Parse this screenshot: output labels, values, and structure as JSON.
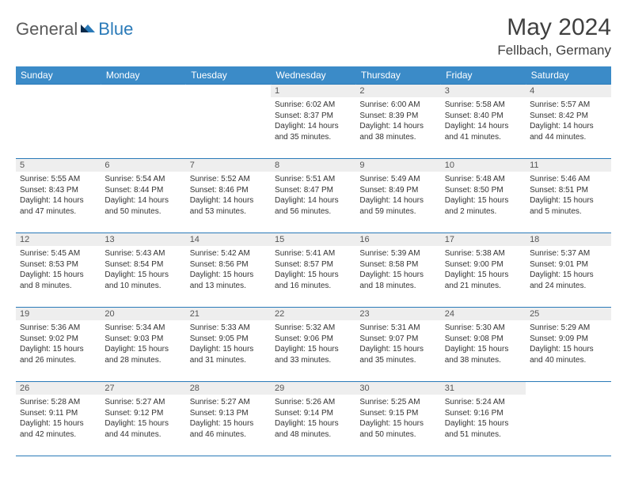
{
  "logo": {
    "text1": "General",
    "text2": "Blue"
  },
  "title": "May 2024",
  "location": "Fellbach, Germany",
  "colors": {
    "header_bg": "#3b8bc8",
    "header_fg": "#ffffff",
    "rule": "#2a7ab8",
    "daynum_bg": "#eeeeee",
    "accent": "#2a7ab8"
  },
  "weekdays": [
    "Sunday",
    "Monday",
    "Tuesday",
    "Wednesday",
    "Thursday",
    "Friday",
    "Saturday"
  ],
  "weeks": [
    [
      null,
      null,
      null,
      {
        "n": "1",
        "sr": "Sunrise: 6:02 AM",
        "ss": "Sunset: 8:37 PM",
        "d1": "Daylight: 14 hours",
        "d2": "and 35 minutes."
      },
      {
        "n": "2",
        "sr": "Sunrise: 6:00 AM",
        "ss": "Sunset: 8:39 PM",
        "d1": "Daylight: 14 hours",
        "d2": "and 38 minutes."
      },
      {
        "n": "3",
        "sr": "Sunrise: 5:58 AM",
        "ss": "Sunset: 8:40 PM",
        "d1": "Daylight: 14 hours",
        "d2": "and 41 minutes."
      },
      {
        "n": "4",
        "sr": "Sunrise: 5:57 AM",
        "ss": "Sunset: 8:42 PM",
        "d1": "Daylight: 14 hours",
        "d2": "and 44 minutes."
      }
    ],
    [
      {
        "n": "5",
        "sr": "Sunrise: 5:55 AM",
        "ss": "Sunset: 8:43 PM",
        "d1": "Daylight: 14 hours",
        "d2": "and 47 minutes."
      },
      {
        "n": "6",
        "sr": "Sunrise: 5:54 AM",
        "ss": "Sunset: 8:44 PM",
        "d1": "Daylight: 14 hours",
        "d2": "and 50 minutes."
      },
      {
        "n": "7",
        "sr": "Sunrise: 5:52 AM",
        "ss": "Sunset: 8:46 PM",
        "d1": "Daylight: 14 hours",
        "d2": "and 53 minutes."
      },
      {
        "n": "8",
        "sr": "Sunrise: 5:51 AM",
        "ss": "Sunset: 8:47 PM",
        "d1": "Daylight: 14 hours",
        "d2": "and 56 minutes."
      },
      {
        "n": "9",
        "sr": "Sunrise: 5:49 AM",
        "ss": "Sunset: 8:49 PM",
        "d1": "Daylight: 14 hours",
        "d2": "and 59 minutes."
      },
      {
        "n": "10",
        "sr": "Sunrise: 5:48 AM",
        "ss": "Sunset: 8:50 PM",
        "d1": "Daylight: 15 hours",
        "d2": "and 2 minutes."
      },
      {
        "n": "11",
        "sr": "Sunrise: 5:46 AM",
        "ss": "Sunset: 8:51 PM",
        "d1": "Daylight: 15 hours",
        "d2": "and 5 minutes."
      }
    ],
    [
      {
        "n": "12",
        "sr": "Sunrise: 5:45 AM",
        "ss": "Sunset: 8:53 PM",
        "d1": "Daylight: 15 hours",
        "d2": "and 8 minutes."
      },
      {
        "n": "13",
        "sr": "Sunrise: 5:43 AM",
        "ss": "Sunset: 8:54 PM",
        "d1": "Daylight: 15 hours",
        "d2": "and 10 minutes."
      },
      {
        "n": "14",
        "sr": "Sunrise: 5:42 AM",
        "ss": "Sunset: 8:56 PM",
        "d1": "Daylight: 15 hours",
        "d2": "and 13 minutes."
      },
      {
        "n": "15",
        "sr": "Sunrise: 5:41 AM",
        "ss": "Sunset: 8:57 PM",
        "d1": "Daylight: 15 hours",
        "d2": "and 16 minutes."
      },
      {
        "n": "16",
        "sr": "Sunrise: 5:39 AM",
        "ss": "Sunset: 8:58 PM",
        "d1": "Daylight: 15 hours",
        "d2": "and 18 minutes."
      },
      {
        "n": "17",
        "sr": "Sunrise: 5:38 AM",
        "ss": "Sunset: 9:00 PM",
        "d1": "Daylight: 15 hours",
        "d2": "and 21 minutes."
      },
      {
        "n": "18",
        "sr": "Sunrise: 5:37 AM",
        "ss": "Sunset: 9:01 PM",
        "d1": "Daylight: 15 hours",
        "d2": "and 24 minutes."
      }
    ],
    [
      {
        "n": "19",
        "sr": "Sunrise: 5:36 AM",
        "ss": "Sunset: 9:02 PM",
        "d1": "Daylight: 15 hours",
        "d2": "and 26 minutes."
      },
      {
        "n": "20",
        "sr": "Sunrise: 5:34 AM",
        "ss": "Sunset: 9:03 PM",
        "d1": "Daylight: 15 hours",
        "d2": "and 28 minutes."
      },
      {
        "n": "21",
        "sr": "Sunrise: 5:33 AM",
        "ss": "Sunset: 9:05 PM",
        "d1": "Daylight: 15 hours",
        "d2": "and 31 minutes."
      },
      {
        "n": "22",
        "sr": "Sunrise: 5:32 AM",
        "ss": "Sunset: 9:06 PM",
        "d1": "Daylight: 15 hours",
        "d2": "and 33 minutes."
      },
      {
        "n": "23",
        "sr": "Sunrise: 5:31 AM",
        "ss": "Sunset: 9:07 PM",
        "d1": "Daylight: 15 hours",
        "d2": "and 35 minutes."
      },
      {
        "n": "24",
        "sr": "Sunrise: 5:30 AM",
        "ss": "Sunset: 9:08 PM",
        "d1": "Daylight: 15 hours",
        "d2": "and 38 minutes."
      },
      {
        "n": "25",
        "sr": "Sunrise: 5:29 AM",
        "ss": "Sunset: 9:09 PM",
        "d1": "Daylight: 15 hours",
        "d2": "and 40 minutes."
      }
    ],
    [
      {
        "n": "26",
        "sr": "Sunrise: 5:28 AM",
        "ss": "Sunset: 9:11 PM",
        "d1": "Daylight: 15 hours",
        "d2": "and 42 minutes."
      },
      {
        "n": "27",
        "sr": "Sunrise: 5:27 AM",
        "ss": "Sunset: 9:12 PM",
        "d1": "Daylight: 15 hours",
        "d2": "and 44 minutes."
      },
      {
        "n": "28",
        "sr": "Sunrise: 5:27 AM",
        "ss": "Sunset: 9:13 PM",
        "d1": "Daylight: 15 hours",
        "d2": "and 46 minutes."
      },
      {
        "n": "29",
        "sr": "Sunrise: 5:26 AM",
        "ss": "Sunset: 9:14 PM",
        "d1": "Daylight: 15 hours",
        "d2": "and 48 minutes."
      },
      {
        "n": "30",
        "sr": "Sunrise: 5:25 AM",
        "ss": "Sunset: 9:15 PM",
        "d1": "Daylight: 15 hours",
        "d2": "and 50 minutes."
      },
      {
        "n": "31",
        "sr": "Sunrise: 5:24 AM",
        "ss": "Sunset: 9:16 PM",
        "d1": "Daylight: 15 hours",
        "d2": "and 51 minutes."
      },
      null
    ]
  ]
}
